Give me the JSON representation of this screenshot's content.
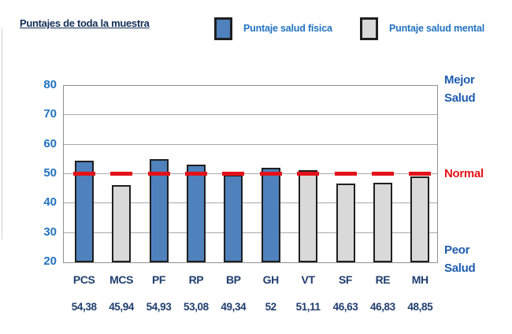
{
  "header": {
    "title": "Puntajes de toda la muestra"
  },
  "colors": {
    "physical_bar": "#4f81bd",
    "mental_bar": "#d9d9d9",
    "bar_border": "#1f1f1f",
    "title_text": "#142f56",
    "legend_text": "#2373c0",
    "ytick_text": "#2373c0",
    "xlabel_text": "#203e6e",
    "side_blue_text": "#1d5cad",
    "normal_red": "#e31219",
    "gridline": "#a9a9a9"
  },
  "chart_data": {
    "type": "bar",
    "title": "Puntajes de toda la muestra",
    "categories": [
      "PCS",
      "MCS",
      "PF",
      "RP",
      "BP",
      "GH",
      "VT",
      "SF",
      "RE",
      "MH"
    ],
    "values": [
      54.38,
      45.94,
      54.93,
      53.08,
      49.34,
      52,
      51.11,
      46.63,
      46.83,
      48.85
    ],
    "value_labels": [
      "54,38",
      "45,94",
      "54,93",
      "53,08",
      "49,34",
      "52",
      "51,11",
      "46,63",
      "46,83",
      "48,85"
    ],
    "series_by_bar": [
      "fisica",
      "mental",
      "fisica",
      "fisica",
      "fisica",
      "fisica",
      "mental",
      "mental",
      "mental",
      "mental"
    ],
    "series": [
      {
        "key": "fisica",
        "name": "Puntaje salud física",
        "color": "#4f81bd"
      },
      {
        "key": "mental",
        "name": "Puntaje salud mental",
        "color": "#d9d9d9"
      }
    ],
    "ylim": [
      20,
      80
    ],
    "yticks": [
      20,
      30,
      40,
      50,
      60,
      70,
      80
    ],
    "grid": true,
    "legend_position": "top",
    "reference_line": {
      "value": 50,
      "label": "Normal",
      "style": "dashed",
      "color": "#e31219"
    },
    "side_annotations": {
      "top": [
        "Mejor",
        "Salud"
      ],
      "bottom": [
        "Peor",
        "Salud"
      ]
    }
  }
}
